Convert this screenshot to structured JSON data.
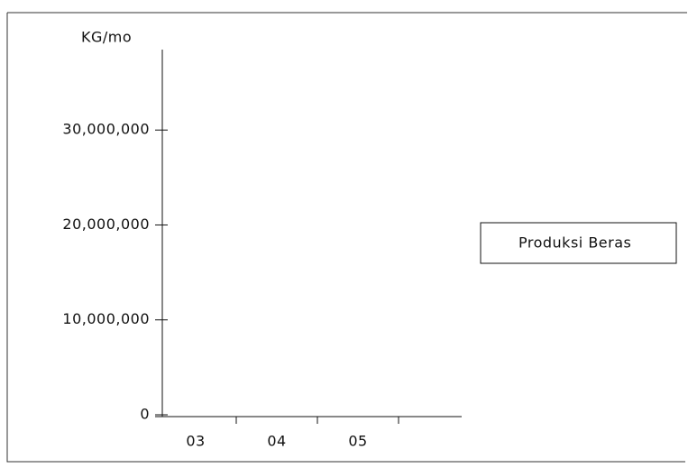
{
  "chart_data": {
    "type": "line",
    "y_label": "KG/mo",
    "categories": [
      "03",
      "04",
      "05"
    ],
    "series": [
      {
        "name": "Produksi Beras",
        "values": [
          null,
          null,
          null
        ]
      }
    ],
    "ylim": [
      0,
      38000000
    ],
    "yticks": [
      {
        "value": 0,
        "label": "0"
      },
      {
        "value": 10000000,
        "label": "10,000,000"
      },
      {
        "value": 20000000,
        "label": "20,000,000"
      },
      {
        "value": 30000000,
        "label": "30,000,000"
      }
    ]
  }
}
